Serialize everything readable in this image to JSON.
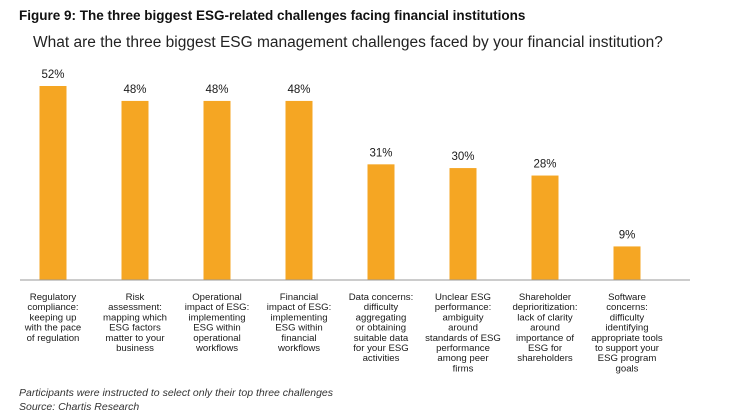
{
  "figure": {
    "title": "Figure 9: The three biggest ESG-related challenges facing financial institutions",
    "subtitle": "What are the three biggest ESG management challenges faced by your financial institution?"
  },
  "notes": {
    "participants": "Participants were instructed to select only their top three challenges",
    "source": "Source: Chartis Research"
  },
  "colors": {
    "bar": "#F5A623",
    "axis": "#9a9a9a",
    "text": "#1a1a1a"
  },
  "chart_data": {
    "type": "bar",
    "title": "What are the three biggest ESG management challenges faced by your financial institution?",
    "xlabel": "",
    "ylabel": "",
    "ylim": [
      0,
      52
    ],
    "grid": false,
    "legend": "none",
    "categories": [
      "Regulatory compliance: keeping up with the pace of regulation",
      "Risk assessment: mapping which ESG factors matter to your business",
      "Operational impact of ESG: implementing ESG within operational workflows",
      "Financial impact of ESG: implementing ESG within financial workflows",
      "Data concerns: difficulty aggregating or obtaining suitable data for your ESG activities",
      "Unclear ESG performance: ambiguity around standards of ESG performance among peer firms",
      "Shareholder deprioritization: lack of clarity around importance of ESG for shareholders",
      "Software concerns: difficulty identifying appropriate tools to support your ESG program goals"
    ],
    "category_lines": [
      [
        "Regulatory",
        "compliance:",
        "keeping up",
        "with the pace",
        "of regulation"
      ],
      [
        "Risk",
        "assessment:",
        "mapping which",
        "ESG factors",
        "matter to your",
        "business"
      ],
      [
        "Operational",
        "impact of ESG:",
        "implementing",
        "ESG within",
        "operational",
        "workflows"
      ],
      [
        "Financial",
        "impact of ESG:",
        "implementing",
        "ESG within",
        "financial",
        "workflows"
      ],
      [
        "Data concerns:",
        "difficulty",
        "aggregating",
        "or obtaining",
        "suitable data",
        "for your ESG",
        "activities"
      ],
      [
        "Unclear ESG",
        "performance:",
        "ambiguity",
        "around",
        "standards of ESG",
        "performance",
        "among peer",
        "firms"
      ],
      [
        "Shareholder",
        "deprioritization:",
        "lack of clarity",
        "around",
        "importance of",
        "ESG for",
        "shareholders"
      ],
      [
        "Software",
        "concerns:",
        "difficulty",
        "identifying",
        "appropriate tools",
        "to support your",
        "ESG program",
        "goals"
      ]
    ],
    "values": [
      52,
      48,
      48,
      48,
      31,
      30,
      28,
      9
    ],
    "value_labels": [
      "52%",
      "48%",
      "48%",
      "48%",
      "31%",
      "30%",
      "28%",
      "9%"
    ]
  }
}
